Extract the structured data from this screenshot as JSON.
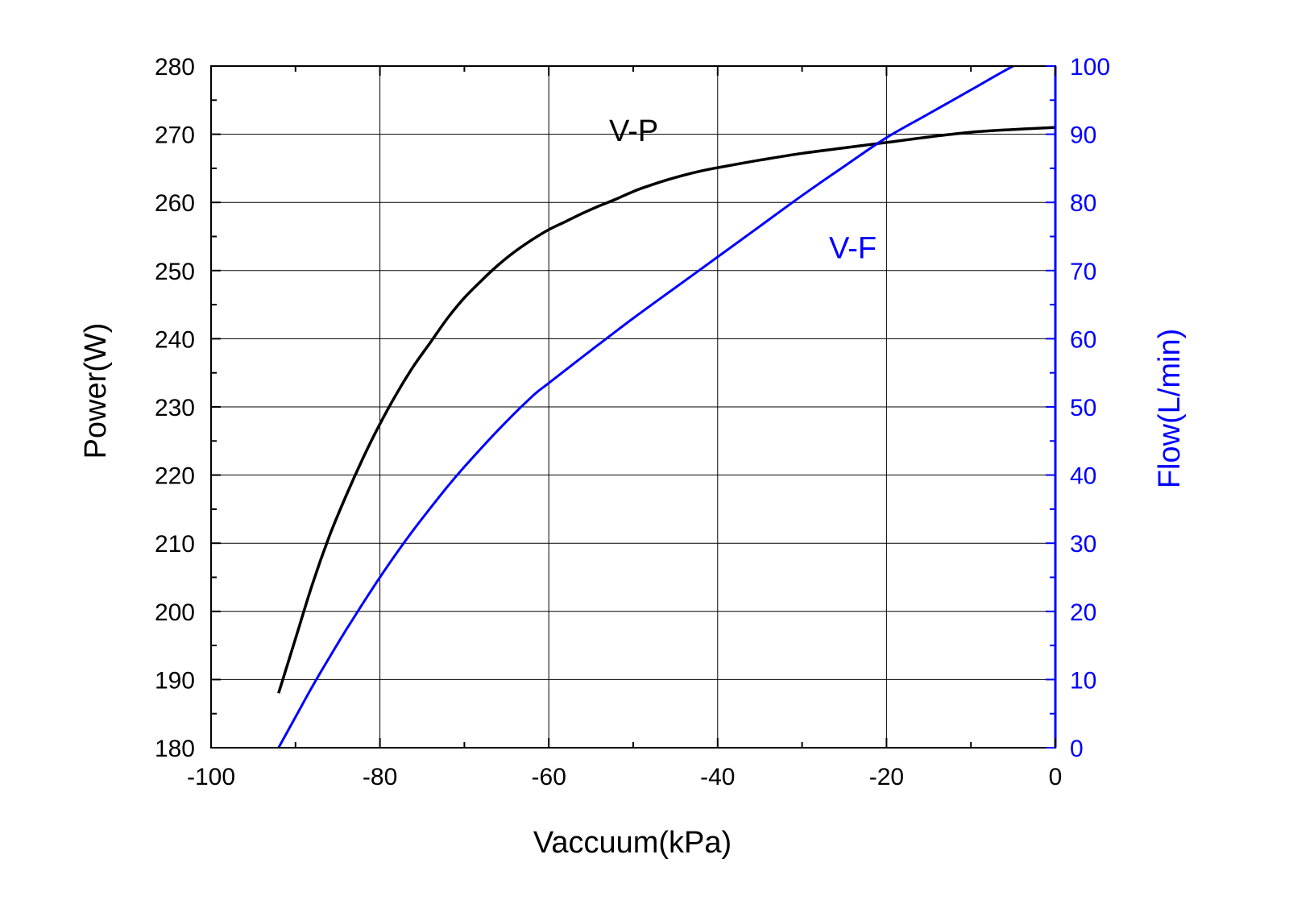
{
  "chart_data": {
    "type": "line",
    "title": "",
    "xlabel": "Vaccuum(kPa)",
    "ylabel": "Power(W)",
    "y2label": "Flow(L/min)",
    "xlim": [
      -100,
      0
    ],
    "ylim": [
      180,
      280
    ],
    "y2lim": [
      0,
      100
    ],
    "xticks": [
      "-100",
      "-80",
      "-60",
      "-40",
      "-20",
      "0"
    ],
    "yticks": [
      "180",
      "190",
      "200",
      "210",
      "220",
      "230",
      "240",
      "250",
      "260",
      "270",
      "280"
    ],
    "y2ticks": [
      "0",
      "10",
      "20",
      "30",
      "40",
      "50",
      "60",
      "70",
      "80",
      "90",
      "100"
    ],
    "grid": true,
    "colors": {
      "primary": "#000000",
      "secondary": "#0000ff",
      "grid": "#000000"
    },
    "series": [
      {
        "name": "V-P",
        "axis": "left",
        "color": "#000000",
        "x": [
          -92,
          -90,
          -88,
          -86,
          -84,
          -82,
          -80,
          -78,
          -76,
          -74,
          -72,
          -70,
          -68,
          -66,
          -64,
          -62,
          -60,
          -58,
          -56,
          -54,
          -52,
          -50,
          -48,
          -46,
          -44,
          -42,
          -40,
          -35,
          -30,
          -25,
          -20,
          -15,
          -10,
          -5,
          0
        ],
        "y": [
          188,
          196,
          204,
          211,
          217,
          222.5,
          227.5,
          232,
          236,
          239.5,
          243,
          246,
          248.5,
          250.8,
          252.8,
          254.5,
          256,
          257.2,
          258.4,
          259.5,
          260.5,
          261.6,
          262.5,
          263.3,
          264,
          264.6,
          265.1,
          266.2,
          267.2,
          268,
          268.8,
          269.6,
          270.3,
          270.7,
          271
        ]
      },
      {
        "name": "V-F",
        "axis": "right",
        "color": "#0000ff",
        "x": [
          -92,
          -90,
          -88,
          -86,
          -84,
          -82,
          -80,
          -78,
          -76,
          -74,
          -72,
          -70,
          -66,
          -62,
          -60,
          -55,
          -50,
          -45,
          -40,
          -35,
          -30,
          -25,
          -20,
          -15,
          -10,
          -5,
          0
        ],
        "y": [
          0,
          4.5,
          9,
          13.2,
          17.3,
          21.2,
          25,
          28.6,
          32,
          35.2,
          38.3,
          41.2,
          46.6,
          51.5,
          53.5,
          58.3,
          63,
          67.5,
          72,
          76.5,
          81,
          85.3,
          89.5,
          93,
          96.5,
          100,
          103
        ]
      }
    ],
    "annotations": [
      {
        "text": "V-P",
        "x": -50,
        "y": 269,
        "axis": "left",
        "color": "#000000"
      },
      {
        "text": "V-F",
        "x": -23,
        "y": 73,
        "axis": "right",
        "color": "#0000ff"
      }
    ]
  }
}
